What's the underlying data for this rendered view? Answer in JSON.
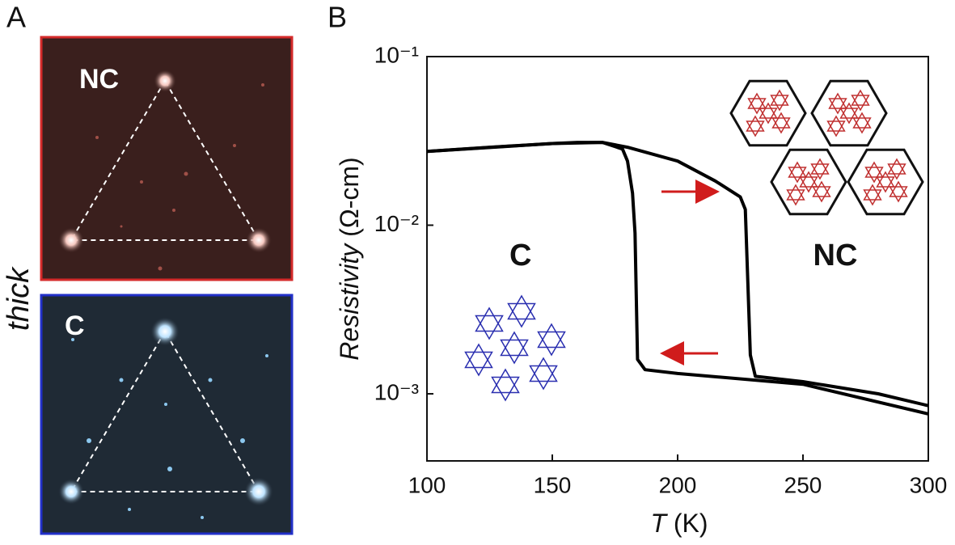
{
  "panel_labels": [
    "A",
    "B"
  ],
  "panel_a": {
    "side_label": "thick",
    "top_label": "NC",
    "bottom_label": "C"
  },
  "chart_data": {
    "type": "line",
    "xlabel": "T",
    "xlabel_unit": "(K)",
    "ylabel": "Resistivity",
    "ylabel_unit": "(Ω-cm)",
    "log_y": true,
    "xlim": [
      100,
      300
    ],
    "xticks": [
      100,
      150,
      200,
      250,
      300
    ],
    "ylim": [
      0.0004,
      0.1
    ],
    "yticks": [
      {
        "value": 0.001,
        "label": "10⁻³"
      },
      {
        "value": 0.01,
        "label": "10⁻²"
      },
      {
        "value": 0.1,
        "label": "10⁻¹"
      }
    ],
    "annotations": [
      "C",
      "NC"
    ],
    "series": [
      {
        "color": "#000000",
        "x": [
          100,
          125,
          150,
          160,
          170,
          178,
          180,
          182,
          183,
          184,
          187,
          200,
          250,
          300
        ],
        "values": [
          0.0274,
          0.029,
          0.0305,
          0.031,
          0.031,
          0.0283,
          0.024,
          0.0155,
          0.009,
          0.0016,
          0.00139,
          0.00132,
          0.00114,
          0.00076
        ]
      },
      {
        "color": "#000000",
        "x": [
          100,
          150,
          170,
          180,
          200,
          215,
          225,
          227,
          228,
          229,
          231,
          250,
          280,
          300
        ],
        "values": [
          0.0274,
          0.0305,
          0.031,
          0.029,
          0.024,
          0.0183,
          0.0147,
          0.0124,
          0.0046,
          0.0017,
          0.00127,
          0.00118,
          0.001,
          0.00085
        ]
      }
    ]
  }
}
